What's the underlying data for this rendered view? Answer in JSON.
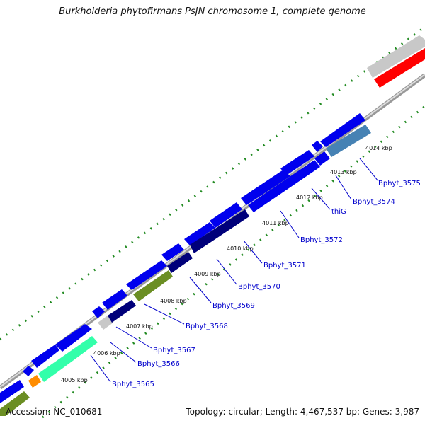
{
  "header": {
    "title": "Burkholderia phytofirmans PsJN chromosome 1, complete genome"
  },
  "footer": {
    "accession": "Accession: NC_010681",
    "summary": "Topology: circular; Length: 4,467,537 bp; Genes: 3,987"
  },
  "colors": {
    "gene_blue": "#0000ee",
    "navy": "#00007a",
    "olive": "#6b8e23",
    "aqua": "#33ffaa",
    "orange": "#ff8c00",
    "steel": "#4682b4",
    "gray": "#c8c8c8",
    "red": "#ff0000",
    "tick": "#228b22",
    "backbone": "#888888",
    "label": "#0000cc"
  },
  "scale_labels": [
    "4005 kbp",
    "4006 kbp",
    "4007 kbp",
    "4008 kbp",
    "4009 kbp",
    "4010 kbp",
    "4011 kbp",
    "4012 kbp",
    "4013 kbp",
    "4014 kbp"
  ],
  "gene_labels": [
    "Bphyt_3565",
    "Bphyt_3566",
    "Bphyt_3567",
    "Bphyt_3568",
    "Bphyt_3569",
    "Bphyt_3570",
    "Bphyt_3571",
    "Bphyt_3572",
    "thiG",
    "Bphyt_3574",
    "Bphyt_3575"
  ]
}
